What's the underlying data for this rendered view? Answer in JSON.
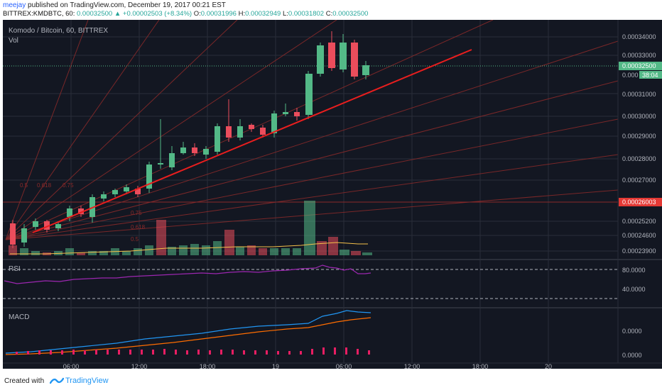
{
  "header": {
    "author": "meejay",
    "published_text": "published on TradingView.com, December 19, 2017 00:21 EST",
    "symbol": "BITTREX:KMDBTC, 60",
    "price": "0.00032500",
    "change": "+0.00002503 (+8.34%)",
    "o_label": "O:",
    "o": "0.00031996",
    "h_label": "H:",
    "h": "0.00032949",
    "l_label": "L:",
    "l": "0.00031802",
    "c_label": "C:",
    "c": "0.00032500"
  },
  "chart": {
    "title": "Komodo / Bitcoin, 60, BITTREX",
    "vol_label": "Vol",
    "price_labels": [
      "0.00034000",
      "0.00033000",
      "0.00031000",
      "0.00030000",
      "0.00029000",
      "0.00028000",
      "0.00027000",
      "0.00025200",
      "0.00024600",
      "0.00023900"
    ],
    "current_price_label": "0.00032500",
    "countdown_label": "0.000",
    "countdown_time": "38:04",
    "level_label": "0.00026003",
    "fib_labels_top": [
      "0.5",
      "0.618",
      "0.75"
    ],
    "fib_labels_bottom": [
      "0.75",
      "0.618",
      "0.5"
    ],
    "x_labels": [
      "06:00",
      "12:00",
      "18:00",
      "19",
      "06:00",
      "12:00",
      "18:00",
      "20"
    ],
    "colors": {
      "bg": "#131722",
      "up": "#53b987",
      "down": "#eb4d5c",
      "trend": "#e91e1e",
      "rsi": "#9c27b0",
      "macd": "#2196f3",
      "signal": "#ff6d00",
      "hist": "#e91e63"
    }
  },
  "rsi": {
    "label": "RSI",
    "levels": [
      "80.0000",
      "40.0000"
    ]
  },
  "macd": {
    "label": "MACD",
    "levels": [
      "0.0000",
      "0.0000"
    ]
  },
  "footer": {
    "created_with": "Created with",
    "brand": "TradingView"
  }
}
